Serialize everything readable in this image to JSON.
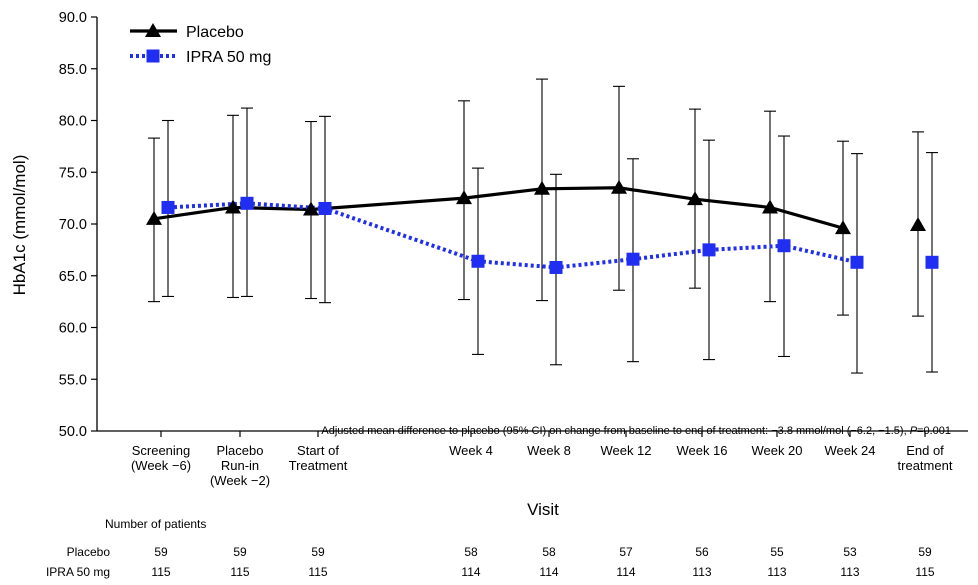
{
  "chart_data": {
    "type": "line",
    "xlabel": "Visit",
    "ylabel": "HbA1c (mmol/mol)",
    "ylim": [
      50.0,
      90.0
    ],
    "yticks": [
      "50.0",
      "55.0",
      "60.0",
      "65.0",
      "70.0",
      "75.0",
      "80.0",
      "85.0",
      "90.0"
    ],
    "categories": [
      [
        "Screening",
        "(Week −6)"
      ],
      [
        "Placebo",
        "Run-in",
        "(Week −2)"
      ],
      [
        "Start of",
        "Treatment"
      ],
      [
        "Week 4"
      ],
      [
        "Week 8"
      ],
      [
        "Week 12"
      ],
      [
        "Week 16"
      ],
      [
        "Week 20"
      ],
      [
        "Week 24"
      ],
      [
        "End of",
        "treatment"
      ]
    ],
    "legend_position": "top-left",
    "series": [
      {
        "name": "Placebo",
        "color": "#000000",
        "marker": "triangle",
        "line_style": "solid",
        "values": [
          70.5,
          71.6,
          71.4,
          72.5,
          73.4,
          73.5,
          72.4,
          71.6,
          69.6,
          69.9
        ],
        "ci_lower": [
          62.5,
          62.9,
          62.8,
          62.7,
          62.6,
          63.6,
          63.8,
          62.5,
          61.2,
          61.1
        ],
        "ci_upper": [
          78.3,
          80.5,
          79.9,
          81.9,
          84.0,
          83.3,
          81.1,
          80.9,
          78.0,
          78.9
        ],
        "connect_through_index": 8
      },
      {
        "name": "IPRA 50 mg",
        "color": "#1f2ef0",
        "marker": "square",
        "line_style": "dotted",
        "values": [
          71.6,
          72.0,
          71.5,
          66.4,
          65.8,
          66.6,
          67.5,
          67.9,
          66.3,
          66.3
        ],
        "ci_lower": [
          63.0,
          63.0,
          62.4,
          57.4,
          56.4,
          56.7,
          56.9,
          57.2,
          55.6,
          55.7
        ],
        "ci_upper": [
          80.0,
          81.2,
          80.4,
          75.4,
          74.8,
          76.3,
          78.1,
          78.5,
          76.8,
          76.9
        ],
        "connect_through_index": 8
      }
    ],
    "annotation": {
      "text": "Adjusted mean difference to placebo (95% CI) on change from baseline to end of treatment: −3.8 mmol/mol (−6.2, −1.5), ",
      "p_label": "P",
      "p_value": "=0.001"
    },
    "patients": {
      "title": "Number of patients",
      "rows": [
        {
          "label": "Placebo",
          "counts": [
            "59",
            "59",
            "59",
            "58",
            "58",
            "57",
            "56",
            "55",
            "53",
            "59"
          ]
        },
        {
          "label": "IPRA 50 mg",
          "counts": [
            "115",
            "115",
            "115",
            "114",
            "114",
            "114",
            "113",
            "113",
            "113",
            "115"
          ]
        }
      ]
    }
  }
}
